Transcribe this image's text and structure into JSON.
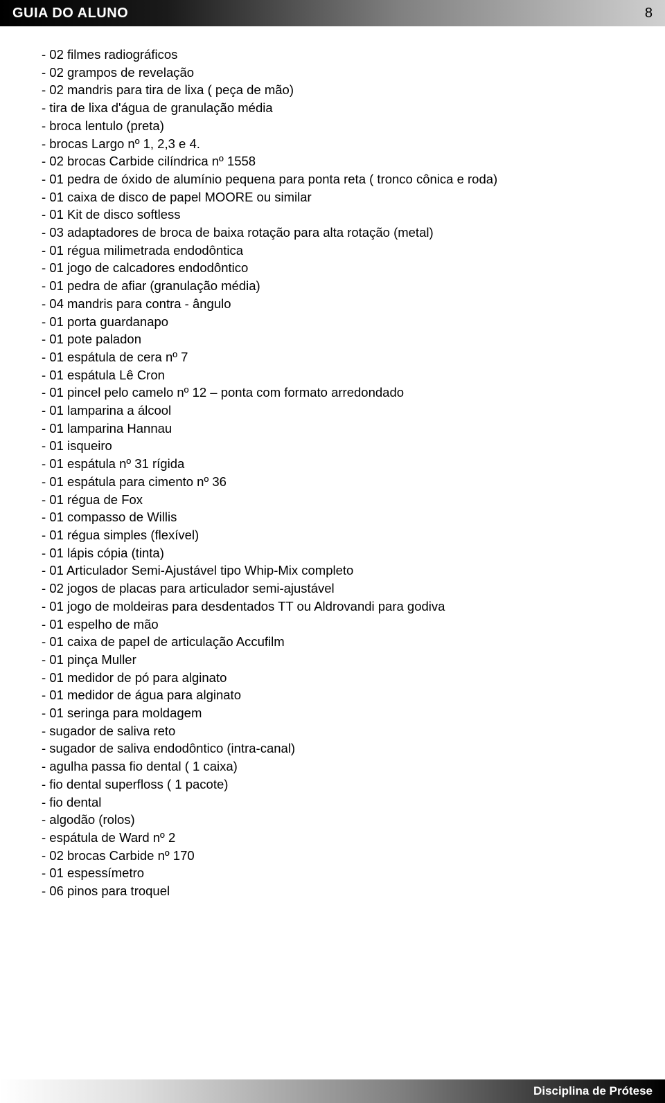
{
  "header": {
    "title": "GUIA DO ALUNO",
    "page_number": "8"
  },
  "list_items": [
    "- 02 filmes radiográficos",
    "- 02 grampos de revelação",
    "- 02 mandris para tira de lixa ( peça de mão)",
    "- tira de lixa d'água de granulação média",
    "- broca lentulo (preta)",
    "- brocas Largo nº 1, 2,3 e 4.",
    "- 02 brocas Carbide cilíndrica nº 1558",
    "- 01 pedra de óxido de alumínio pequena  para ponta reta ( tronco cônica e roda)",
    "- 01 caixa de disco de papel MOORE ou similar",
    "- 01 Kit de disco softless",
    "- 03 adaptadores de broca de baixa rotação para alta rotação (metal)",
    "- 01 régua milimetrada endodôntica",
    "- 01 jogo de calcadores endodôntico",
    "- 01 pedra de afiar (granulação média)",
    "- 04 mandris para contra - ângulo",
    "- 01 porta guardanapo",
    "- 01 pote paladon",
    "- 01 espátula de cera nº 7",
    "- 01 espátula Lê Cron",
    "- 01 pincel pelo camelo nº 12 – ponta com formato arredondado",
    "- 01 lamparina a álcool",
    "- 01 lamparina Hannau",
    "- 01 isqueiro",
    "- 01 espátula nº 31 rígida",
    "- 01 espátula para cimento nº 36",
    "- 01 régua de Fox",
    "- 01 compasso de Willis",
    "- 01 régua simples (flexível)",
    "- 01 lápis cópia (tinta)",
    "- 01 Articulador Semi-Ajustável tipo Whip-Mix completo",
    "- 02 jogos de placas para articulador semi-ajustável",
    "- 01 jogo de moldeiras para desdentados TT ou Aldrovandi para godiva",
    "- 01 espelho de mão",
    "- 01 caixa de papel de articulação Accufilm",
    "- 01 pinça Muller",
    "- 01 medidor de pó para alginato",
    "- 01 medidor de água para alginato",
    "- 01 seringa para moldagem",
    "- sugador de saliva reto",
    "- sugador de saliva endodôntico (intra-canal)",
    "- agulha passa fio dental ( 1 caixa)",
    "- fio dental superfloss ( 1 pacote)",
    "- fio dental",
    "- algodão (rolos)",
    "- espátula de Ward nº 2",
    "- 02 brocas Carbide nº 170",
    "- 01 espessímetro",
    "- 06 pinos para troquel"
  ],
  "footer": {
    "text": "Disciplina de Prótese"
  }
}
